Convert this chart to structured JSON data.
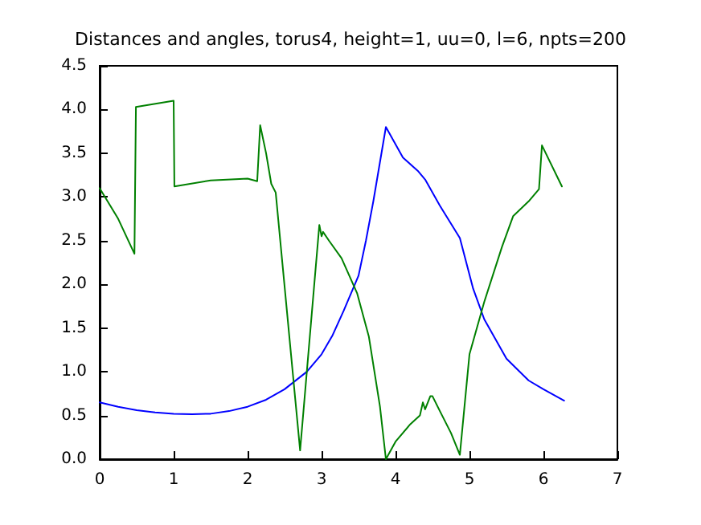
{
  "chart_data": {
    "type": "line",
    "title": "Distances and angles, torus4, height=1, uu=0, l=6, npts=200",
    "xlim": [
      0,
      7
    ],
    "xticks": [
      0,
      1,
      2,
      3,
      4,
      5,
      6,
      7
    ],
    "ylim": [
      0,
      4.5
    ],
    "yticks": [
      {
        "value": 0,
        "label": "0.0"
      },
      {
        "value": 0.5,
        "label": "0.5"
      },
      {
        "value": 1,
        "label": "1.0"
      },
      {
        "value": 1.5,
        "label": "1.5"
      },
      {
        "value": 2,
        "label": "2.0"
      },
      {
        "value": 2.5,
        "label": "2.5"
      },
      {
        "value": 3,
        "label": "3.0"
      },
      {
        "value": 3.5,
        "label": "3.5"
      },
      {
        "value": 4,
        "label": "4.0"
      },
      {
        "value": 4.5,
        "label": "4.5"
      }
    ],
    "grid": false,
    "marker": "none",
    "line_style": "solid",
    "series": [
      {
        "color": "#0000ff",
        "x": [
          0,
          0.25,
          0.5,
          0.75,
          1.0,
          1.25,
          1.5,
          1.75,
          2.0,
          2.25,
          2.5,
          2.8,
          3.0,
          3.15,
          3.3,
          3.5,
          3.6,
          3.7,
          3.87,
          4.1,
          4.3,
          4.4,
          4.6,
          4.87,
          5.05,
          5.2,
          5.5,
          5.8,
          6.0,
          6.28
        ],
        "values": [
          0.65,
          0.6,
          0.56,
          0.535,
          0.52,
          0.515,
          0.52,
          0.55,
          0.6,
          0.68,
          0.8,
          1.0,
          1.2,
          1.42,
          1.7,
          2.1,
          2.5,
          2.95,
          3.8,
          3.45,
          3.3,
          3.2,
          2.9,
          2.53,
          1.95,
          1.6,
          1.15,
          0.9,
          0.8,
          0.67
        ]
      },
      {
        "color": "#008000",
        "x": [
          0,
          0.25,
          0.47,
          0.49,
          1.0,
          1.01,
          1.5,
          2.0,
          2.13,
          2.17,
          2.25,
          2.32,
          2.38,
          2.71,
          2.97,
          3.0,
          3.02,
          3.1,
          3.27,
          3.48,
          3.64,
          3.79,
          3.87,
          4.0,
          4.2,
          4.33,
          4.37,
          4.4,
          4.47,
          4.5,
          4.6,
          4.75,
          4.87,
          5.0,
          5.2,
          5.44,
          5.59,
          5.8,
          5.94,
          5.98,
          6.25
        ],
        "values": [
          3.1,
          2.75,
          2.35,
          4.03,
          4.1,
          3.12,
          3.19,
          3.21,
          3.18,
          3.82,
          3.5,
          3.15,
          3.05,
          0.1,
          2.68,
          2.55,
          2.6,
          2.5,
          2.3,
          1.9,
          1.4,
          0.6,
          0.0,
          0.2,
          0.4,
          0.5,
          0.65,
          0.57,
          0.72,
          0.72,
          0.55,
          0.3,
          0.05,
          1.2,
          1.8,
          2.43,
          2.78,
          2.95,
          3.09,
          3.59,
          3.12
        ]
      }
    ]
  }
}
